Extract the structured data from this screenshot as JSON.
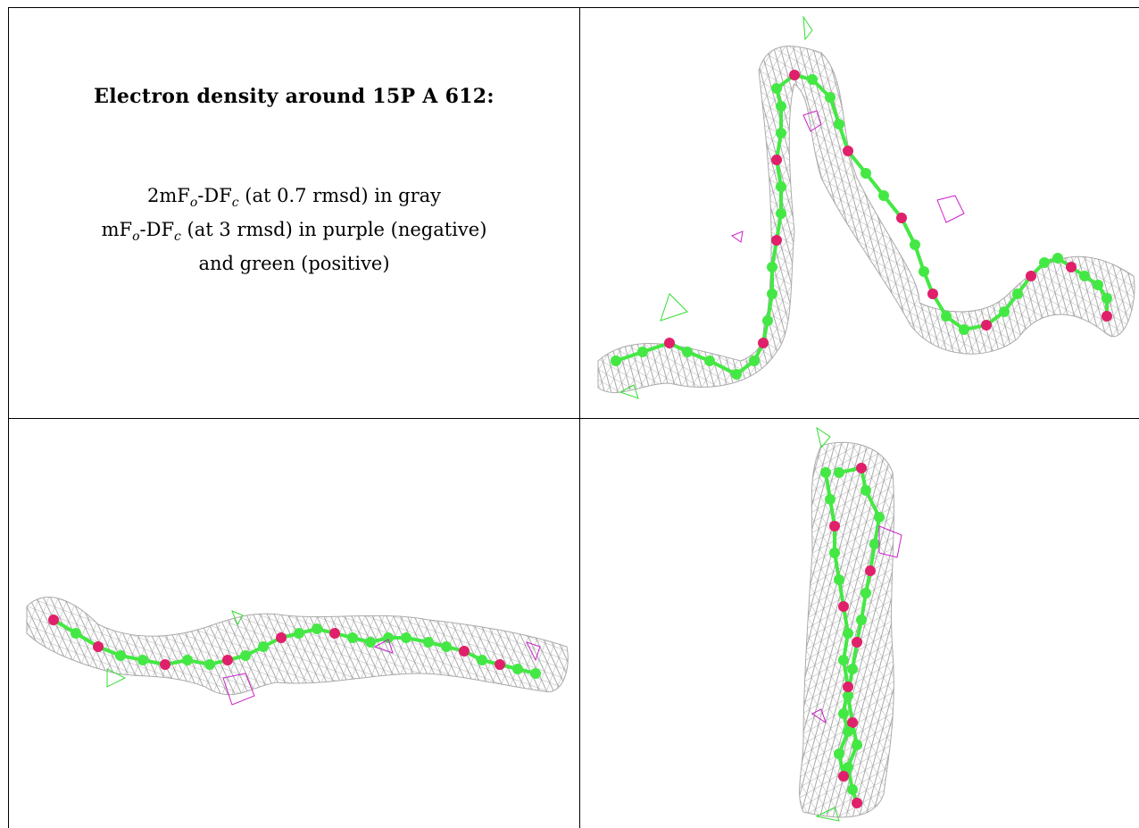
{
  "caption": {
    "title": "Electron density around 15P A 612:",
    "line1": {
      "prefix": "2mF",
      "sub_o": "o",
      "mid": "-DF",
      "sub_c": "c",
      "suffix": " (at 0.7 rmsd) in gray"
    },
    "line2": {
      "prefix": "mF",
      "sub_o": "o",
      "mid": "-DF",
      "sub_c": "c",
      "suffix": " (at 3 rmsd) in purple (negative)"
    },
    "line3": "and green (positive)"
  },
  "colors": {
    "mesh_gray": "#9a9a9a",
    "negative_purple": "#cc22cc",
    "positive_green": "#33dd33",
    "carbon_green": "#44e844",
    "oxygen_pink": "#e0206a",
    "border": "#000000"
  },
  "views": [
    {
      "name": "view-top-right",
      "orientation": "front"
    },
    {
      "name": "view-bottom-left",
      "orientation": "side"
    },
    {
      "name": "view-bottom-right",
      "orientation": "end-on"
    }
  ]
}
